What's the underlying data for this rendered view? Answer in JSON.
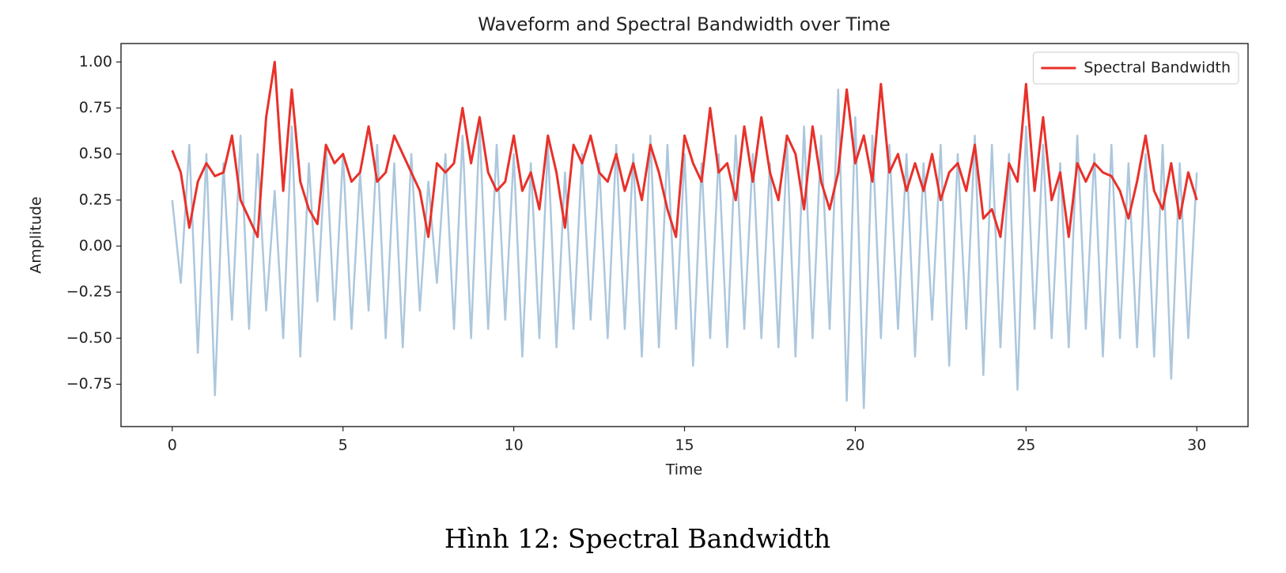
{
  "chart_data": {
    "type": "line",
    "title": "Waveform and Spectral Bandwidth over Time",
    "xlabel": "Time",
    "ylabel": "Amplitude",
    "caption": "Hình 12: Spectral Bandwidth",
    "xlim": [
      -1.5,
      31.5
    ],
    "ylim": [
      -0.98,
      1.1
    ],
    "xticks": [
      0,
      5,
      10,
      15,
      20,
      25,
      30
    ],
    "yticks": [
      {
        "value": -0.75,
        "label": "−0.75"
      },
      {
        "value": -0.5,
        "label": "−0.50"
      },
      {
        "value": -0.25,
        "label": "−0.25"
      },
      {
        "value": 0,
        "label": "0.00"
      },
      {
        "value": 0.25,
        "label": "0.25"
      },
      {
        "value": 0.5,
        "label": "0.50"
      },
      {
        "value": 0.75,
        "label": "0.75"
      },
      {
        "value": 1,
        "label": "1.00"
      }
    ],
    "grid": false,
    "legend": "upper right",
    "x": [
      0,
      0.25,
      0.5,
      0.75,
      1,
      1.25,
      1.5,
      1.75,
      2,
      2.25,
      2.5,
      2.75,
      3,
      3.25,
      3.5,
      3.75,
      4,
      4.25,
      4.5,
      4.75,
      5,
      5.25,
      5.5,
      5.75,
      6,
      6.25,
      6.5,
      6.75,
      7,
      7.25,
      7.5,
      7.75,
      8,
      8.25,
      8.5,
      8.75,
      9,
      9.25,
      9.5,
      9.75,
      10,
      10.25,
      10.5,
      10.75,
      11,
      11.25,
      11.5,
      11.75,
      12,
      12.25,
      12.5,
      12.75,
      13,
      13.25,
      13.5,
      13.75,
      14,
      14.25,
      14.5,
      14.75,
      15,
      15.25,
      15.5,
      15.75,
      16,
      16.25,
      16.5,
      16.75,
      17,
      17.25,
      17.5,
      17.75,
      18,
      18.25,
      18.5,
      18.75,
      19,
      19.25,
      19.5,
      19.75,
      20,
      20.25,
      20.5,
      20.75,
      21,
      21.25,
      21.5,
      21.75,
      22,
      22.25,
      22.5,
      22.75,
      23,
      23.25,
      23.5,
      23.75,
      24,
      24.25,
      24.5,
      24.75,
      25,
      25.25,
      25.5,
      25.75,
      26,
      26.25,
      26.5,
      26.75,
      27,
      27.25,
      27.5,
      27.75,
      28,
      28.25,
      28.5,
      28.75,
      29,
      29.25,
      29.5,
      29.75,
      30
    ],
    "waveform": {
      "color": "#4682b4",
      "values": [
        0.25,
        -0.2,
        0.55,
        -0.58,
        0.5,
        -0.81,
        0.45,
        -0.4,
        0.6,
        -0.45,
        0.5,
        -0.35,
        0.3,
        -0.5,
        0.65,
        -0.6,
        0.45,
        -0.3,
        0.55,
        -0.4,
        0.5,
        -0.45,
        0.4,
        -0.35,
        0.55,
        -0.5,
        0.45,
        -0.55,
        0.5,
        -0.35,
        0.35,
        -0.2,
        0.5,
        -0.45,
        0.6,
        -0.5,
        0.65,
        -0.45,
        0.55,
        -0.4,
        0.5,
        -0.6,
        0.45,
        -0.5,
        0.55,
        -0.55,
        0.4,
        -0.45,
        0.5,
        -0.4,
        0.45,
        -0.5,
        0.55,
        -0.45,
        0.5,
        -0.6,
        0.6,
        -0.55,
        0.55,
        -0.45,
        0.5,
        -0.65,
        0.45,
        -0.5,
        0.5,
        -0.55,
        0.6,
        -0.45,
        0.5,
        -0.5,
        0.45,
        -0.55,
        0.55,
        -0.6,
        0.65,
        -0.5,
        0.6,
        -0.45,
        0.85,
        -0.84,
        0.7,
        -0.88,
        0.6,
        -0.5,
        0.55,
        -0.45,
        0.5,
        -0.6,
        0.45,
        -0.4,
        0.55,
        -0.65,
        0.5,
        -0.45,
        0.6,
        -0.7,
        0.55,
        -0.55,
        0.5,
        -0.78,
        0.65,
        -0.45,
        0.55,
        -0.5,
        0.45,
        -0.55,
        0.6,
        -0.45,
        0.5,
        -0.6,
        0.55,
        -0.5,
        0.45,
        -0.55,
        0.5,
        -0.6,
        0.55,
        -0.72,
        0.45,
        -0.5,
        0.4
      ]
    },
    "series": [
      {
        "name": "Spectral Bandwidth",
        "color": "#e8312a",
        "values": [
          0.52,
          0.4,
          0.1,
          0.35,
          0.45,
          0.38,
          0.4,
          0.6,
          0.25,
          0.15,
          0.05,
          0.7,
          1.0,
          0.3,
          0.85,
          0.35,
          0.2,
          0.12,
          0.55,
          0.45,
          0.5,
          0.35,
          0.4,
          0.65,
          0.35,
          0.4,
          0.6,
          0.5,
          0.4,
          0.3,
          0.05,
          0.45,
          0.4,
          0.45,
          0.75,
          0.45,
          0.7,
          0.4,
          0.3,
          0.35,
          0.6,
          0.3,
          0.4,
          0.2,
          0.6,
          0.4,
          0.1,
          0.55,
          0.45,
          0.6,
          0.4,
          0.35,
          0.5,
          0.3,
          0.45,
          0.25,
          0.55,
          0.4,
          0.2,
          0.05,
          0.6,
          0.45,
          0.35,
          0.75,
          0.4,
          0.45,
          0.25,
          0.65,
          0.35,
          0.7,
          0.4,
          0.25,
          0.6,
          0.5,
          0.2,
          0.65,
          0.35,
          0.2,
          0.4,
          0.85,
          0.45,
          0.6,
          0.35,
          0.88,
          0.4,
          0.5,
          0.3,
          0.45,
          0.3,
          0.5,
          0.25,
          0.4,
          0.45,
          0.3,
          0.55,
          0.15,
          0.2,
          0.05,
          0.45,
          0.35,
          0.88,
          0.3,
          0.7,
          0.25,
          0.4,
          0.05,
          0.45,
          0.35,
          0.45,
          0.4,
          0.38,
          0.3,
          0.15,
          0.35,
          0.6,
          0.3,
          0.2,
          0.45,
          0.15,
          0.4,
          0.25
        ]
      }
    ]
  }
}
